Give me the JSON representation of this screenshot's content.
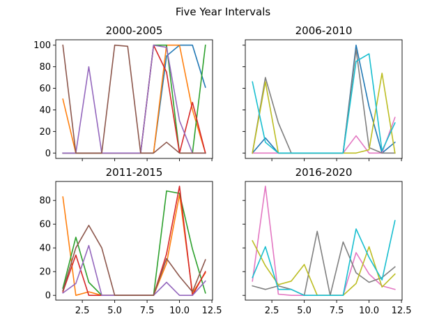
{
  "figure": {
    "title": "Five Year Intervals"
  },
  "colors": [
    "#1f77b4",
    "#ff7f0e",
    "#2ca02c",
    "#d62728",
    "#9467bd",
    "#8c564b",
    "#e377c2",
    "#7f7f7f",
    "#bcbd22",
    "#17becf"
  ],
  "chart_data": [
    {
      "type": "line",
      "title": "2000-2005",
      "xlim": [
        0.45,
        12.55
      ],
      "ylim": [
        -5,
        105
      ],
      "xticks": [
        2.5,
        5.0,
        7.5,
        10.0,
        12.5
      ],
      "xtick_labels": [
        "",
        "",
        "",
        "",
        ""
      ],
      "yticks": [
        0,
        20,
        40,
        60,
        80,
        100
      ],
      "ytick_labels": [
        "0",
        "20",
        "40",
        "60",
        "80",
        "100"
      ],
      "x": [
        1,
        2,
        3,
        4,
        5,
        6,
        7,
        8,
        9,
        10,
        11,
        12
      ],
      "series": [
        {
          "values": [
            0,
            0,
            0,
            0,
            0,
            0,
            0,
            0,
            90,
            100,
            100,
            61
          ]
        },
        {
          "values": [
            50,
            0,
            0,
            0,
            0,
            0,
            0,
            0,
            100,
            100,
            40,
            0
          ]
        },
        {
          "values": [
            0,
            0,
            0,
            0,
            0,
            0,
            0,
            100,
            100,
            0,
            0,
            100
          ]
        },
        {
          "values": [
            0,
            0,
            0,
            0,
            0,
            0,
            0,
            100,
            75,
            0,
            47,
            0
          ]
        },
        {
          "values": [
            0,
            0,
            80,
            0,
            0,
            0,
            0,
            100,
            98,
            30,
            0,
            0
          ]
        },
        {
          "values": [
            100,
            0,
            0,
            0,
            100,
            99,
            0,
            0,
            10,
            0,
            0,
            0
          ]
        }
      ]
    },
    {
      "type": "line",
      "title": "2006-2010",
      "xlim": [
        0.45,
        12.55
      ],
      "ylim": [
        -5,
        105
      ],
      "xticks": [
        2.5,
        5.0,
        7.5,
        10.0,
        12.5
      ],
      "xtick_labels": [
        "",
        "",
        "",
        "",
        ""
      ],
      "yticks": [
        0,
        20,
        40,
        60,
        80,
        100
      ],
      "ytick_labels": [
        "",
        "",
        "",
        "",
        "",
        ""
      ],
      "x": [
        1,
        2,
        3,
        4,
        5,
        6,
        7,
        8,
        9,
        10,
        11,
        12
      ],
      "series": [
        {
          "color_index": 0,
          "values": [
            0,
            14,
            0,
            0,
            0,
            0,
            0,
            0,
            100,
            43,
            0,
            10
          ]
        },
        {
          "color_index": 6,
          "values": [
            0,
            0,
            0,
            0,
            0,
            0,
            0,
            0,
            16,
            0,
            0,
            33
          ]
        },
        {
          "color_index": 7,
          "values": [
            0,
            70,
            28,
            0,
            0,
            0,
            0,
            0,
            96,
            5,
            0,
            0
          ]
        },
        {
          "color_index": 8,
          "values": [
            0,
            66,
            0,
            0,
            0,
            0,
            0,
            0,
            0,
            3,
            74,
            0
          ]
        },
        {
          "color_index": 9,
          "values": [
            66,
            10,
            0,
            0,
            0,
            0,
            0,
            0,
            85,
            92,
            2,
            28
          ]
        }
      ]
    },
    {
      "type": "line",
      "title": "2011-2015",
      "xlim": [
        0.45,
        12.55
      ],
      "ylim": [
        -4,
        96
      ],
      "xticks": [
        2.5,
        5.0,
        7.5,
        10.0,
        12.5
      ],
      "xtick_labels": [
        "2.5",
        "5.0",
        "7.5",
        "10.0",
        "12.5"
      ],
      "yticks": [
        0,
        20,
        40,
        60,
        80
      ],
      "ytick_labels": [
        "0",
        "20",
        "40",
        "60",
        "80"
      ],
      "x": [
        1,
        2,
        3,
        4,
        5,
        6,
        7,
        8,
        9,
        10,
        11,
        12
      ],
      "series": [
        {
          "color_index": 1,
          "values": [
            83,
            0,
            3,
            0,
            0,
            0,
            0,
            0,
            27,
            85,
            2,
            19
          ]
        },
        {
          "color_index": 2,
          "values": [
            6,
            49,
            11,
            0,
            0,
            0,
            0,
            0,
            88,
            86,
            39,
            2
          ]
        },
        {
          "color_index": 3,
          "values": [
            3,
            34,
            0,
            0,
            0,
            0,
            0,
            0,
            35,
            92,
            0,
            20
          ]
        },
        {
          "color_index": 4,
          "values": [
            2,
            10,
            42,
            0,
            0,
            0,
            0,
            0,
            11,
            0,
            0,
            12
          ]
        },
        {
          "color_index": 5,
          "values": [
            4,
            40,
            59,
            40,
            0,
            0,
            0,
            0,
            31,
            16,
            3,
            30
          ]
        }
      ]
    },
    {
      "type": "line",
      "title": "2016-2020",
      "xlim": [
        0.45,
        12.55
      ],
      "ylim": [
        -4,
        96
      ],
      "xticks": [
        2.5,
        5.0,
        7.5,
        10.0,
        12.5
      ],
      "xtick_labels": [
        "2.5",
        "5.0",
        "7.5",
        "10.0",
        "12.5"
      ],
      "yticks": [
        0,
        20,
        40,
        60,
        80
      ],
      "ytick_labels": [
        "",
        "",
        "",
        "",
        ""
      ],
      "x": [
        1,
        2,
        3,
        4,
        5,
        6,
        7,
        8,
        9,
        10,
        11,
        12
      ],
      "series": [
        {
          "color_index": 6,
          "values": [
            12,
            92,
            1,
            0,
            0,
            0,
            0,
            0,
            36,
            18,
            8,
            5
          ]
        },
        {
          "color_index": 7,
          "values": [
            8,
            5,
            8,
            5,
            0,
            54,
            0,
            45,
            19,
            11,
            15,
            24
          ]
        },
        {
          "color_index": 8,
          "values": [
            46,
            25,
            9,
            12,
            26,
            0,
            0,
            0,
            10,
            41,
            7,
            18
          ]
        },
        {
          "color_index": 9,
          "values": [
            15,
            41,
            5,
            5,
            0,
            0,
            0,
            0,
            56,
            32,
            13,
            63
          ]
        }
      ]
    }
  ]
}
